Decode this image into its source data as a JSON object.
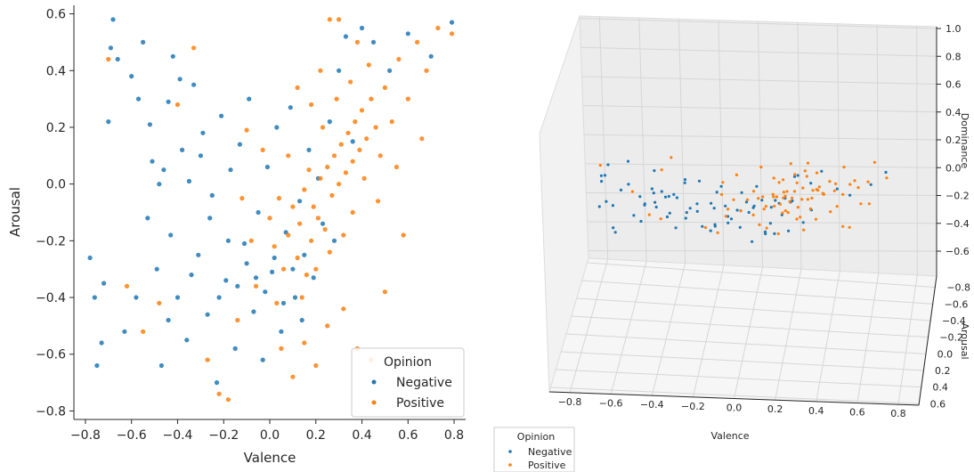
{
  "chart_data": [
    {
      "type": "scatter",
      "xlabel": "Valence",
      "ylabel": "Arousal",
      "xlim": [
        -0.85,
        0.85
      ],
      "ylim": [
        -0.83,
        0.63
      ],
      "xticks": [
        "−0.8",
        "−0.6",
        "−0.4",
        "−0.2",
        "0.0",
        "0.2",
        "0.4",
        "0.6",
        "0.8"
      ],
      "yticks": [
        "−0.8",
        "−0.6",
        "−0.4",
        "−0.2",
        "0.0",
        "0.2",
        "0.4",
        "0.6"
      ],
      "legend": {
        "title": "Opinion",
        "placement": "bottom-right",
        "entries": [
          "Negative",
          "Positive"
        ]
      },
      "series": [
        {
          "name": "Negative",
          "color": "#1f77b4",
          "points": [
            [
              -0.78,
              -0.26
            ],
            [
              -0.76,
              -0.4
            ],
            [
              -0.75,
              -0.64
            ],
            [
              -0.73,
              -0.56
            ],
            [
              -0.72,
              -0.35
            ],
            [
              -0.7,
              0.22
            ],
            [
              -0.69,
              0.48
            ],
            [
              -0.68,
              0.58
            ],
            [
              -0.66,
              0.44
            ],
            [
              -0.63,
              -0.52
            ],
            [
              -0.6,
              0.38
            ],
            [
              -0.57,
              0.3
            ],
            [
              -0.55,
              0.5
            ],
            [
              -0.53,
              -0.12
            ],
            [
              -0.51,
              0.08
            ],
            [
              -0.49,
              -0.3
            ],
            [
              -0.47,
              -0.64
            ],
            [
              -0.46,
              0.05
            ],
            [
              -0.44,
              0.29
            ],
            [
              -0.43,
              -0.18
            ],
            [
              -0.42,
              0.45
            ],
            [
              -0.4,
              -0.4
            ],
            [
              -0.38,
              0.12
            ],
            [
              -0.36,
              -0.55
            ],
            [
              -0.35,
              0.01
            ],
            [
              -0.33,
              0.35
            ],
            [
              -0.31,
              -0.25
            ],
            [
              -0.29,
              0.18
            ],
            [
              -0.27,
              -0.46
            ],
            [
              -0.25,
              -0.04
            ],
            [
              -0.23,
              -0.7
            ],
            [
              -0.21,
              0.24
            ],
            [
              -0.19,
              -0.34
            ],
            [
              -0.17,
              0.05
            ],
            [
              -0.15,
              -0.58
            ],
            [
              -0.13,
              0.14
            ],
            [
              -0.11,
              -0.21
            ],
            [
              -0.09,
              0.3
            ],
            [
              -0.07,
              -0.45
            ],
            [
              -0.05,
              -0.1
            ],
            [
              -0.03,
              -0.62
            ],
            [
              -0.01,
              0.06
            ],
            [
              0.01,
              -0.31
            ],
            [
              0.03,
              0.2
            ],
            [
              0.05,
              -0.52
            ],
            [
              0.07,
              -0.17
            ],
            [
              0.09,
              0.27
            ],
            [
              0.11,
              -0.4
            ],
            [
              0.13,
              -0.06
            ],
            [
              0.15,
              -0.25
            ],
            [
              0.17,
              0.12
            ],
            [
              0.19,
              -0.33
            ],
            [
              0.21,
              0.02
            ],
            [
              0.23,
              -0.14
            ],
            [
              0.26,
              0.22
            ],
            [
              0.28,
              -0.2
            ],
            [
              0.3,
              0.4
            ],
            [
              0.33,
              0.52
            ],
            [
              0.36,
              0.15
            ],
            [
              0.4,
              0.55
            ],
            [
              0.45,
              0.5
            ],
            [
              0.52,
              0.4
            ],
            [
              0.6,
              0.53
            ],
            [
              0.7,
              0.45
            ],
            [
              0.79,
              0.57
            ],
            [
              -0.58,
              -0.4
            ],
            [
              -0.52,
              0.21
            ],
            [
              -0.48,
              0.0
            ],
            [
              -0.44,
              -0.48
            ],
            [
              -0.39,
              0.37
            ],
            [
              -0.34,
              -0.32
            ],
            [
              -0.3,
              0.1
            ],
            [
              -0.26,
              -0.12
            ],
            [
              -0.22,
              -0.4
            ],
            [
              -0.18,
              -0.2
            ],
            [
              -0.14,
              -0.36
            ],
            [
              -0.1,
              -0.28
            ],
            [
              -0.06,
              -0.33
            ],
            [
              -0.02,
              -0.38
            ],
            [
              0.02,
              -0.26
            ],
            [
              0.06,
              -0.42
            ],
            [
              0.1,
              -0.3
            ],
            [
              0.14,
              -0.48
            ]
          ]
        },
        {
          "name": "Positive",
          "color": "#ff7f0e",
          "points": [
            [
              -0.7,
              0.44
            ],
            [
              -0.62,
              -0.36
            ],
            [
              -0.55,
              -0.52
            ],
            [
              -0.48,
              -0.42
            ],
            [
              -0.4,
              0.28
            ],
            [
              -0.33,
              0.48
            ],
            [
              -0.27,
              -0.62
            ],
            [
              -0.22,
              -0.74
            ],
            [
              -0.18,
              -0.76
            ],
            [
              -0.14,
              -0.48
            ],
            [
              -0.1,
              0.19
            ],
            [
              -0.06,
              -0.36
            ],
            [
              -0.03,
              0.12
            ],
            [
              0.0,
              -0.12
            ],
            [
              0.02,
              -0.22
            ],
            [
              0.04,
              -0.05
            ],
            [
              0.06,
              -0.3
            ],
            [
              0.08,
              -0.18
            ],
            [
              0.1,
              -0.08
            ],
            [
              0.12,
              -0.26
            ],
            [
              0.13,
              -0.14
            ],
            [
              0.15,
              -0.02
            ],
            [
              0.16,
              -0.32
            ],
            [
              0.18,
              -0.2
            ],
            [
              0.19,
              -0.08
            ],
            [
              0.21,
              -0.12
            ],
            [
              0.22,
              0.02
            ],
            [
              0.24,
              -0.16
            ],
            [
              0.25,
              0.06
            ],
            [
              0.27,
              -0.04
            ],
            [
              0.28,
              0.1
            ],
            [
              0.3,
              0.0
            ],
            [
              0.31,
              0.14
            ],
            [
              0.33,
              0.04
            ],
            [
              0.34,
              0.18
            ],
            [
              0.36,
              0.08
            ],
            [
              0.37,
              0.22
            ],
            [
              0.39,
              0.12
            ],
            [
              0.4,
              0.26
            ],
            [
              0.42,
              0.16
            ],
            [
              0.44,
              0.3
            ],
            [
              0.46,
              0.2
            ],
            [
              0.48,
              0.1
            ],
            [
              0.5,
              0.34
            ],
            [
              0.53,
              0.22
            ],
            [
              0.56,
              0.44
            ],
            [
              0.6,
              0.3
            ],
            [
              0.64,
              0.5
            ],
            [
              0.68,
              0.4
            ],
            [
              0.73,
              0.55
            ],
            [
              0.79,
              0.53
            ],
            [
              0.26,
              0.58
            ],
            [
              0.3,
              0.58
            ],
            [
              0.38,
              0.5
            ],
            [
              0.05,
              -0.58
            ],
            [
              0.1,
              -0.68
            ],
            [
              0.15,
              -0.56
            ],
            [
              0.2,
              -0.64
            ],
            [
              0.25,
              -0.5
            ],
            [
              0.32,
              -0.44
            ],
            [
              0.38,
              -0.58
            ],
            [
              0.44,
              -0.62
            ],
            [
              0.5,
              -0.38
            ],
            [
              0.18,
              0.28
            ],
            [
              0.12,
              0.34
            ],
            [
              0.22,
              0.4
            ],
            [
              0.08,
              0.1
            ],
            [
              0.14,
              -0.4
            ],
            [
              0.2,
              -0.3
            ],
            [
              0.26,
              -0.24
            ],
            [
              0.32,
              -0.18
            ],
            [
              0.36,
              -0.1
            ],
            [
              0.41,
              0.02
            ],
            [
              0.03,
              -0.42
            ],
            [
              -0.08,
              -0.2
            ],
            [
              -0.12,
              -0.05
            ],
            [
              0.17,
              0.05
            ],
            [
              0.23,
              0.2
            ],
            [
              0.29,
              0.3
            ],
            [
              0.35,
              0.36
            ],
            [
              0.43,
              0.42
            ],
            [
              0.47,
              -0.06
            ],
            [
              0.55,
              0.06
            ],
            [
              0.58,
              -0.18
            ],
            [
              0.66,
              0.16
            ]
          ]
        }
      ]
    },
    {
      "type": "scatter",
      "xlabel": "Valence",
      "ylabel": "Arousal",
      "zlabel": "Dominance",
      "xticks": [
        "−0.8",
        "−0.6",
        "−0.4",
        "−0.2",
        "0.0",
        "0.2",
        "0.4",
        "0.6",
        "0.8"
      ],
      "yticks": [
        "−0.8",
        "−0.6",
        "−0.4",
        "−0.2",
        "0.0",
        "0.2",
        "0.4",
        "0.6"
      ],
      "zticks": [
        "−0.6",
        "−0.4",
        "−0.2",
        "0.0",
        "0.2",
        "0.4",
        "0.6",
        "0.8",
        "1.0"
      ],
      "legend": {
        "title": "Opinion",
        "placement": "bottom-left",
        "entries": [
          "Negative",
          "Positive"
        ]
      },
      "series": [
        {
          "name": "Negative",
          "color": "#1f77b4"
        },
        {
          "name": "Positive",
          "color": "#ff7f0e"
        }
      ]
    }
  ]
}
